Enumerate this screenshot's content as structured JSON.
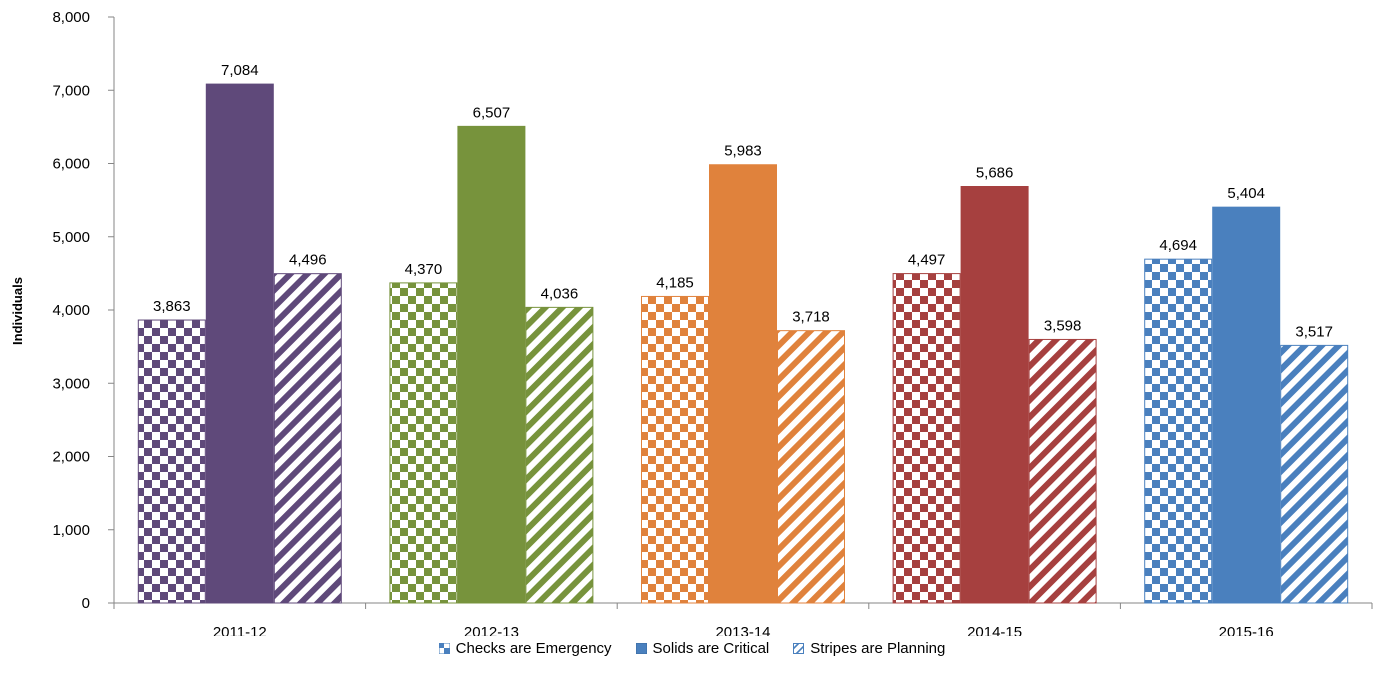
{
  "chart_data": {
    "type": "bar",
    "title": "",
    "xlabel": "",
    "ylabel": "Individuals",
    "ylim": [
      0,
      8000
    ],
    "yticks": [
      0,
      1000,
      2000,
      3000,
      4000,
      5000,
      6000,
      7000,
      8000
    ],
    "ytick_labels": [
      "0",
      "1,000",
      "2,000",
      "3,000",
      "4,000",
      "5,000",
      "6,000",
      "7,000",
      "8,000"
    ],
    "categories": [
      "2011-12",
      "2012-13",
      "2013-14",
      "2014-15",
      "2015-16"
    ],
    "category_colors": [
      "#5f497a",
      "#77933c",
      "#e0823c",
      "#a6403f",
      "#4a80be"
    ],
    "series": [
      {
        "name": "Checks are Emergency",
        "pattern": "checks",
        "values": [
          3863,
          4370,
          4185,
          4497,
          4694
        ],
        "labels": [
          "3,863",
          "4,370",
          "4,185",
          "4,497",
          "4,694"
        ]
      },
      {
        "name": "Solids are Critical",
        "pattern": "solid",
        "values": [
          7084,
          6507,
          5983,
          5686,
          5404
        ],
        "labels": [
          "7,084",
          "6,507",
          "5,983",
          "5,686",
          "5,404"
        ]
      },
      {
        "name": "Stripes are Planning",
        "pattern": "stripes",
        "values": [
          4496,
          4036,
          3718,
          3598,
          3517
        ],
        "labels": [
          "4,496",
          "4,036",
          "3,718",
          "3,598",
          "3,517"
        ]
      }
    ],
    "grid": false,
    "legend_position": "bottom",
    "legend_color": "#4a80be"
  }
}
